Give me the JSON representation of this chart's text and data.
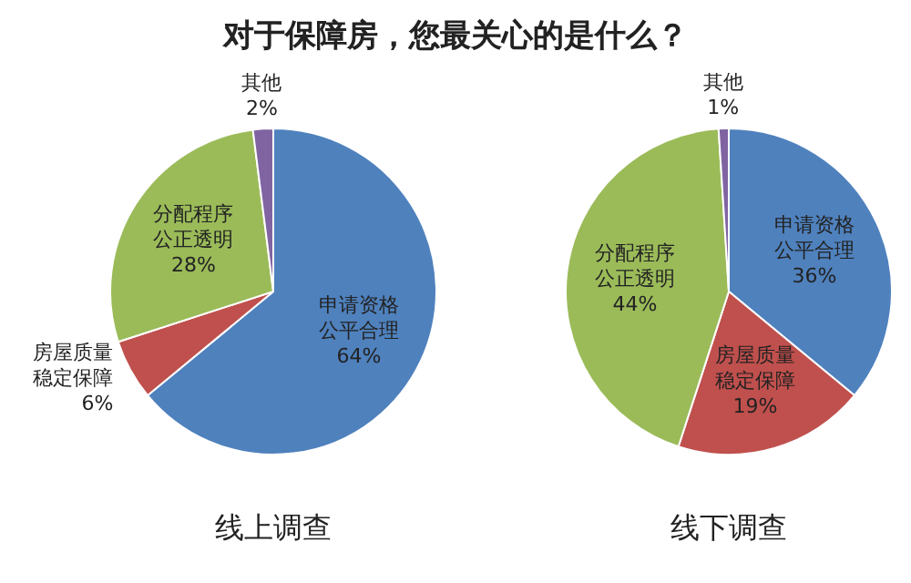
{
  "chart_data": [
    {
      "type": "pie",
      "title": "对于保障房，您最关心的是什么？",
      "xlabel": "线上调查",
      "legend": false,
      "categories": [
        "申请资格公平合理",
        "房屋质量稳定保障",
        "分配程序公正透明",
        "其他"
      ],
      "values": [
        64,
        6,
        28,
        2
      ],
      "value_labels": [
        "64%",
        "6%",
        "28%",
        "2%"
      ],
      "colors": [
        "#4f81bd",
        "#c0504d",
        "#9bbb59",
        "#8064a2"
      ]
    },
    {
      "type": "pie",
      "xlabel": "线下调查",
      "legend": false,
      "categories": [
        "申请资格公平合理",
        "房屋质量稳定保障",
        "分配程序公正透明",
        "其他"
      ],
      "values": [
        36,
        19,
        44,
        1
      ],
      "value_labels": [
        "36%",
        "19%",
        "44%",
        "1%"
      ],
      "colors": [
        "#4f81bd",
        "#c0504d",
        "#9bbb59",
        "#8064a2"
      ]
    }
  ]
}
